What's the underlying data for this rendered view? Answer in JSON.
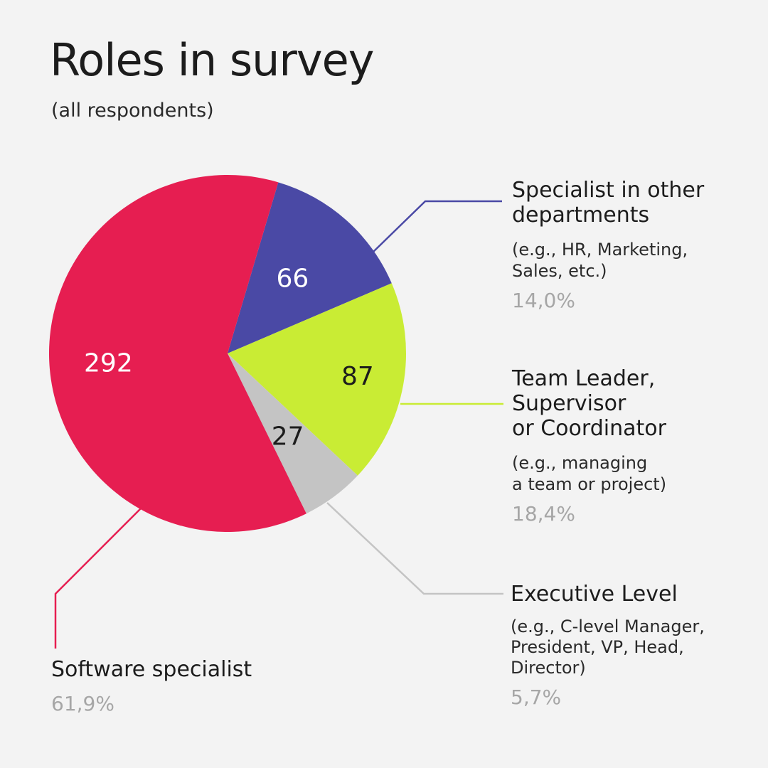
{
  "title": "Roles in survey",
  "subtitle": "(all respondents)",
  "chart_data": {
    "type": "pie",
    "title": "Roles in survey",
    "subtitle": "(all respondents)",
    "total": 472,
    "slices": [
      {
        "key": "other",
        "label": "Specialist in other departments",
        "note": "(e.g., HR, Marketing,\nSales, etc.)",
        "value": 66,
        "percent_label": "14,0%",
        "color": "#4a49a5",
        "label_color": "#ffffff"
      },
      {
        "key": "lead",
        "label": "Team Leader,\nSupervisor\nor Coordinator",
        "note": "(e.g., managing\na team or project)",
        "value": 87,
        "percent_label": "18,4%",
        "color": "#c9ec34",
        "label_color": "#1c1c1c"
      },
      {
        "key": "exec",
        "label": "Executive Level",
        "note": "(e.g., C-level Manager,\nPresident, VP, Head,\nDirector)",
        "value": 27,
        "percent_label": "5,7%",
        "color": "#c4c4c4",
        "label_color": "#1c1c1c"
      },
      {
        "key": "software",
        "label": "Software specialist",
        "note": "",
        "value": 292,
        "percent_label": "61,9%",
        "color": "#e61e51",
        "label_color": "#ffffff"
      }
    ]
  },
  "legend": {
    "other": {
      "name": "Specialist in other\ndepartments",
      "note": "(e.g., HR, Marketing,\nSales, etc.)",
      "pct": "14,0%"
    },
    "lead": {
      "name": "Team Leader,\nSupervisor\nor Coordinator",
      "note": "(e.g., managing\na team or project)",
      "pct": "18,4%"
    },
    "exec": {
      "name": "Executive Level",
      "note": "(e.g., C-level Manager,\nPresident, VP, Head,\nDirector)",
      "pct": "5,7%"
    },
    "software": {
      "name": "Software specialist",
      "pct": "61,9%"
    }
  }
}
